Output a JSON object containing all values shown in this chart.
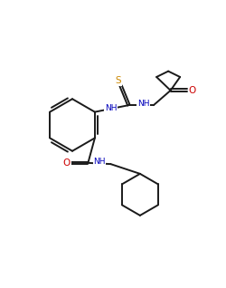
{
  "bg_color": "#ffffff",
  "line_color": "#1a1a1a",
  "S_color": "#cc8800",
  "N_color": "#0000bb",
  "O_color": "#cc0000",
  "line_width": 1.4,
  "figsize": [
    2.5,
    3.18
  ],
  "dpi": 100,
  "xlim": [
    0,
    10
  ],
  "ylim": [
    0,
    12.72
  ]
}
